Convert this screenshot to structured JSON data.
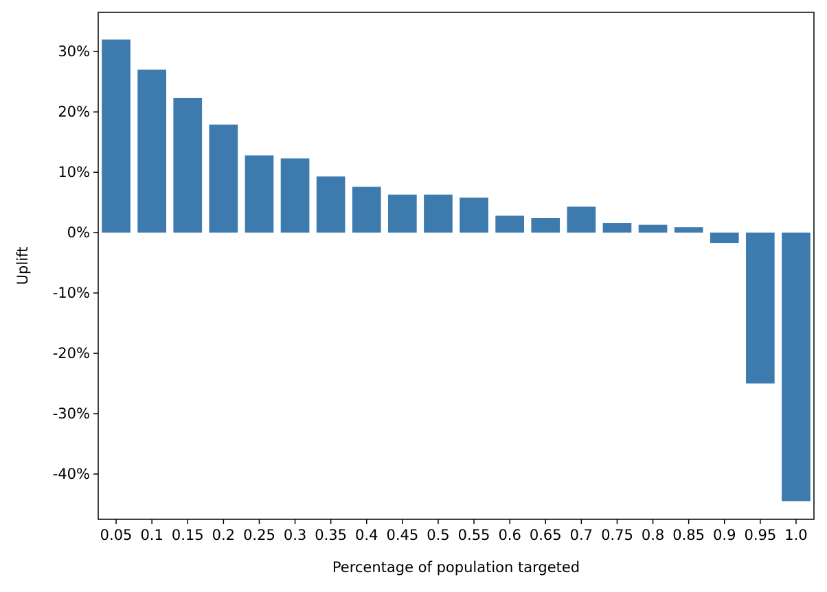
{
  "chart_data": {
    "type": "bar",
    "categories": [
      "0.05",
      "0.1",
      "0.15",
      "0.2",
      "0.25",
      "0.3",
      "0.35",
      "0.4",
      "0.45",
      "0.5",
      "0.55",
      "0.6",
      "0.65",
      "0.7",
      "0.75",
      "0.8",
      "0.85",
      "0.9",
      "0.95",
      "1.0"
    ],
    "values": [
      32.0,
      27.0,
      22.3,
      17.9,
      12.8,
      12.3,
      9.3,
      7.6,
      6.3,
      6.3,
      5.8,
      2.8,
      2.4,
      4.3,
      1.6,
      1.3,
      0.9,
      -1.7,
      -25.0,
      -44.5
    ],
    "title": "",
    "xlabel": "Percentage of population targeted",
    "ylabel": "Uplift",
    "ylim": [
      -47.5,
      36.5
    ],
    "yticks": [
      30,
      20,
      10,
      0,
      -10,
      -20,
      -30,
      -40
    ],
    "ytick_labels": [
      "30%",
      "20%",
      "10%",
      "0%",
      "-10%",
      "-20%",
      "-30%",
      "-40%"
    ],
    "bar_color": "#3d7aad",
    "grid": false,
    "legend": "none"
  }
}
